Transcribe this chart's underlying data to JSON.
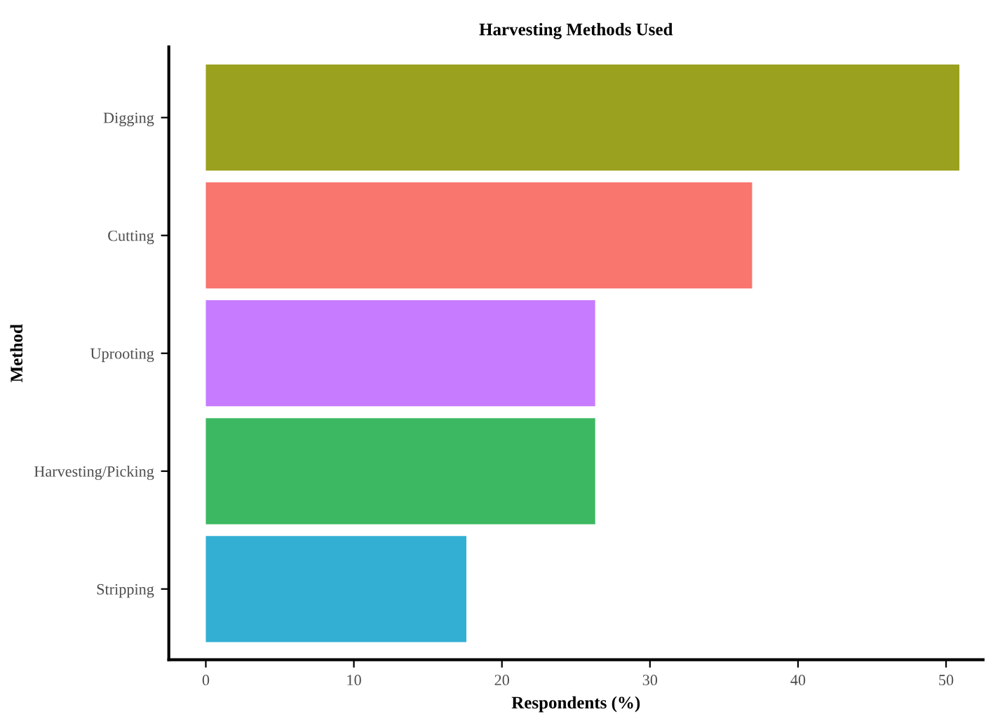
{
  "chart_data": {
    "type": "bar",
    "orientation": "horizontal",
    "title": "Harvesting Methods Used",
    "xlabel": "Respondents (%)",
    "ylabel": "Method",
    "categories": [
      "Digging",
      "Cutting",
      "Uprooting",
      "Harvesting/Picking",
      "Stripping"
    ],
    "values": [
      50.9,
      36.9,
      26.3,
      26.3,
      17.6
    ],
    "colors": [
      "#9aa11e",
      "#f8766d",
      "#c77cff",
      "#3db862",
      "#33afd4"
    ],
    "xlim": [
      -2.5,
      52.5
    ],
    "xticks": [
      0,
      10,
      20,
      30,
      40,
      50
    ],
    "grid": false,
    "legend": false
  }
}
